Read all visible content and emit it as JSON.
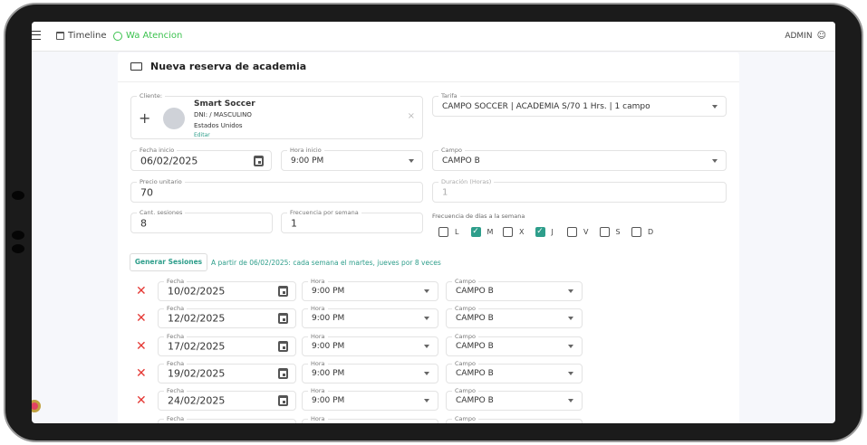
{
  "topbar": {
    "timeline": "Timeline",
    "wa": "Wa Atencion",
    "user": "ADMIN"
  },
  "page_title": "Nueva reserva de academia",
  "cliente": {
    "label": "Cliente:",
    "name": "Smart Soccer",
    "dni": "DNI: / MASCULINO",
    "country": "Estados Unidos",
    "edit": "Editar"
  },
  "tarifa": {
    "label": "Tarifa",
    "value": "CAMPO SOCCER | ACADEMIA S/70 1 Hrs. | 1 campo"
  },
  "fecha_inicio": {
    "label": "Fecha inicio",
    "value": "06/02/2025"
  },
  "hora_inicio": {
    "label": "Hora inicio",
    "value": "9:00 PM"
  },
  "campo": {
    "label": "Campo",
    "value": "CAMPO B"
  },
  "precio": {
    "label": "Precio unitario",
    "value": "70"
  },
  "duracion": {
    "label": "Duración (Horas)",
    "value": "1"
  },
  "sesiones": {
    "label": "Cant. sesiones",
    "value": "8"
  },
  "frecuencia": {
    "label": "Frecuencia por semana",
    "value": "1"
  },
  "dias": {
    "label": "Frecuencia de días a la semana",
    "items": [
      {
        "label": "L",
        "checked": false
      },
      {
        "label": "M",
        "checked": true
      },
      {
        "label": "X",
        "checked": false
      },
      {
        "label": "J",
        "checked": true
      },
      {
        "label": "V",
        "checked": false
      },
      {
        "label": "S",
        "checked": false
      },
      {
        "label": "D",
        "checked": false
      }
    ]
  },
  "generate": {
    "button": "Generar Sesiones",
    "summary": "A partir de 06/02/2025: cada semana el martes, jueves por 8 veces"
  },
  "session_labels": {
    "fecha": "Fecha",
    "hora": "Hora",
    "campo": "Campo"
  },
  "sessions": [
    {
      "fecha": "10/02/2025",
      "hora": "9:00 PM",
      "campo": "CAMPO B"
    },
    {
      "fecha": "12/02/2025",
      "hora": "9:00 PM",
      "campo": "CAMPO B"
    },
    {
      "fecha": "17/02/2025",
      "hora": "9:00 PM",
      "campo": "CAMPO B"
    },
    {
      "fecha": "19/02/2025",
      "hora": "9:00 PM",
      "campo": "CAMPO B"
    },
    {
      "fecha": "24/02/2025",
      "hora": "9:00 PM",
      "campo": "CAMPO B"
    },
    {
      "fecha": "",
      "hora": "",
      "campo": ""
    }
  ],
  "colors": {
    "accent": "#2e9e8b",
    "whatsapp": "#25d366",
    "remove": "#e53935"
  }
}
